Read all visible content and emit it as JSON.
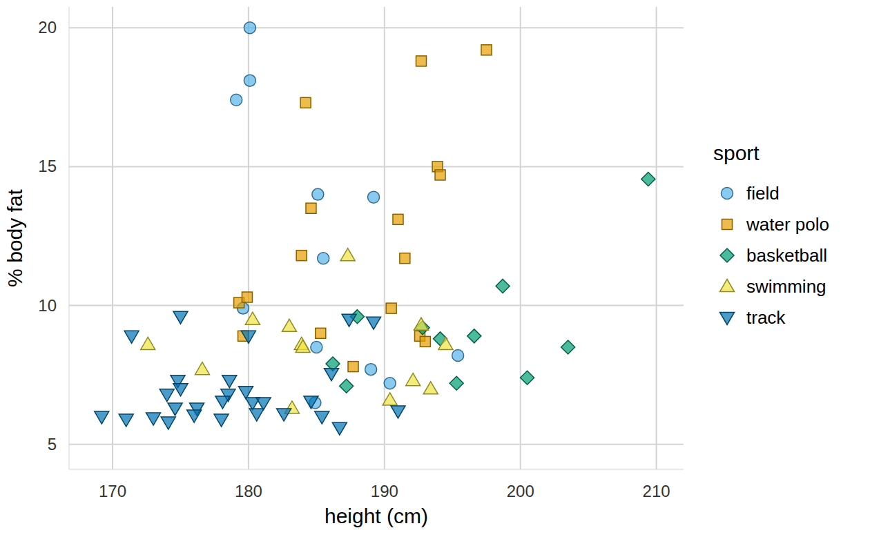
{
  "chart_data": {
    "type": "scatter",
    "x_label": "height (cm)",
    "y_label": "% body fat",
    "legend_title": "sport",
    "legend": "right",
    "grid": true,
    "xlim": [
      166.8,
      212
    ],
    "ylim": [
      4.1,
      20.75
    ],
    "xticks": [
      170,
      180,
      190,
      200,
      210
    ],
    "yticks": [
      5,
      10,
      15,
      20
    ],
    "series": [
      {
        "name": "field",
        "color": "#56B4E9",
        "marker": "circle",
        "x": [
          180.1,
          180.1,
          179.1,
          185.1,
          189.2,
          185.5,
          179.6,
          185.0,
          189.0,
          190.4,
          195.4,
          184.9
        ],
        "values": [
          20.0,
          18.1,
          17.4,
          14.0,
          13.9,
          11.7,
          9.9,
          8.5,
          7.7,
          7.2,
          8.2,
          6.5
        ]
      },
      {
        "name": "water polo",
        "color": "#E69F00",
        "marker": "square",
        "x": [
          197.5,
          192.7,
          184.2,
          193.9,
          194.1,
          184.6,
          191.0,
          183.9,
          191.5,
          179.3,
          179.9,
          190.5,
          179.6,
          185.3,
          187.7,
          192.6,
          193.0
        ],
        "values": [
          19.2,
          18.8,
          17.3,
          15.0,
          14.7,
          13.5,
          13.1,
          11.8,
          11.7,
          10.1,
          10.3,
          9.9,
          8.9,
          9.0,
          7.8,
          8.9,
          8.7
        ]
      },
      {
        "name": "basketball",
        "color": "#009E73",
        "marker": "diamond",
        "x": [
          209.4,
          198.7,
          196.6,
          203.5,
          192.8,
          194.1,
          188.0,
          186.2,
          187.2,
          195.3,
          200.5
        ],
        "values": [
          14.55,
          10.7,
          8.9,
          8.5,
          9.2,
          8.8,
          9.6,
          7.9,
          7.1,
          7.2,
          7.4
        ]
      },
      {
        "name": "swimming",
        "color": "#F0E442",
        "marker": "triangle-up",
        "x": [
          187.3,
          180.3,
          183.0,
          183.9,
          184.0,
          172.6,
          176.6,
          183.2,
          192.7,
          194.5,
          192.1,
          193.4,
          190.4
        ],
        "values": [
          11.8,
          9.5,
          9.25,
          8.6,
          8.5,
          8.6,
          7.7,
          6.3,
          9.3,
          8.6,
          7.3,
          7.0,
          6.6
        ]
      },
      {
        "name": "track",
        "color": "#0072B2",
        "marker": "triangle-down",
        "x": [
          171.4,
          175.0,
          180.0,
          169.2,
          171.0,
          173.0,
          174.1,
          174.0,
          174.8,
          175.0,
          174.6,
          176.2,
          176.0,
          178.0,
          178.6,
          178.5,
          178.1,
          179.8,
          180.3,
          181.1,
          180.6,
          182.6,
          184.6,
          185.4,
          186.7,
          186.1,
          187.4,
          189.2,
          191.0
        ],
        "values": [
          8.9,
          9.6,
          8.9,
          6.0,
          5.9,
          5.95,
          5.8,
          6.8,
          7.3,
          7.0,
          6.3,
          6.3,
          6.05,
          5.9,
          7.3,
          6.8,
          6.55,
          6.9,
          6.5,
          6.5,
          6.1,
          6.1,
          6.55,
          6.0,
          5.6,
          7.55,
          9.5,
          9.4,
          6.2
        ]
      }
    ]
  }
}
